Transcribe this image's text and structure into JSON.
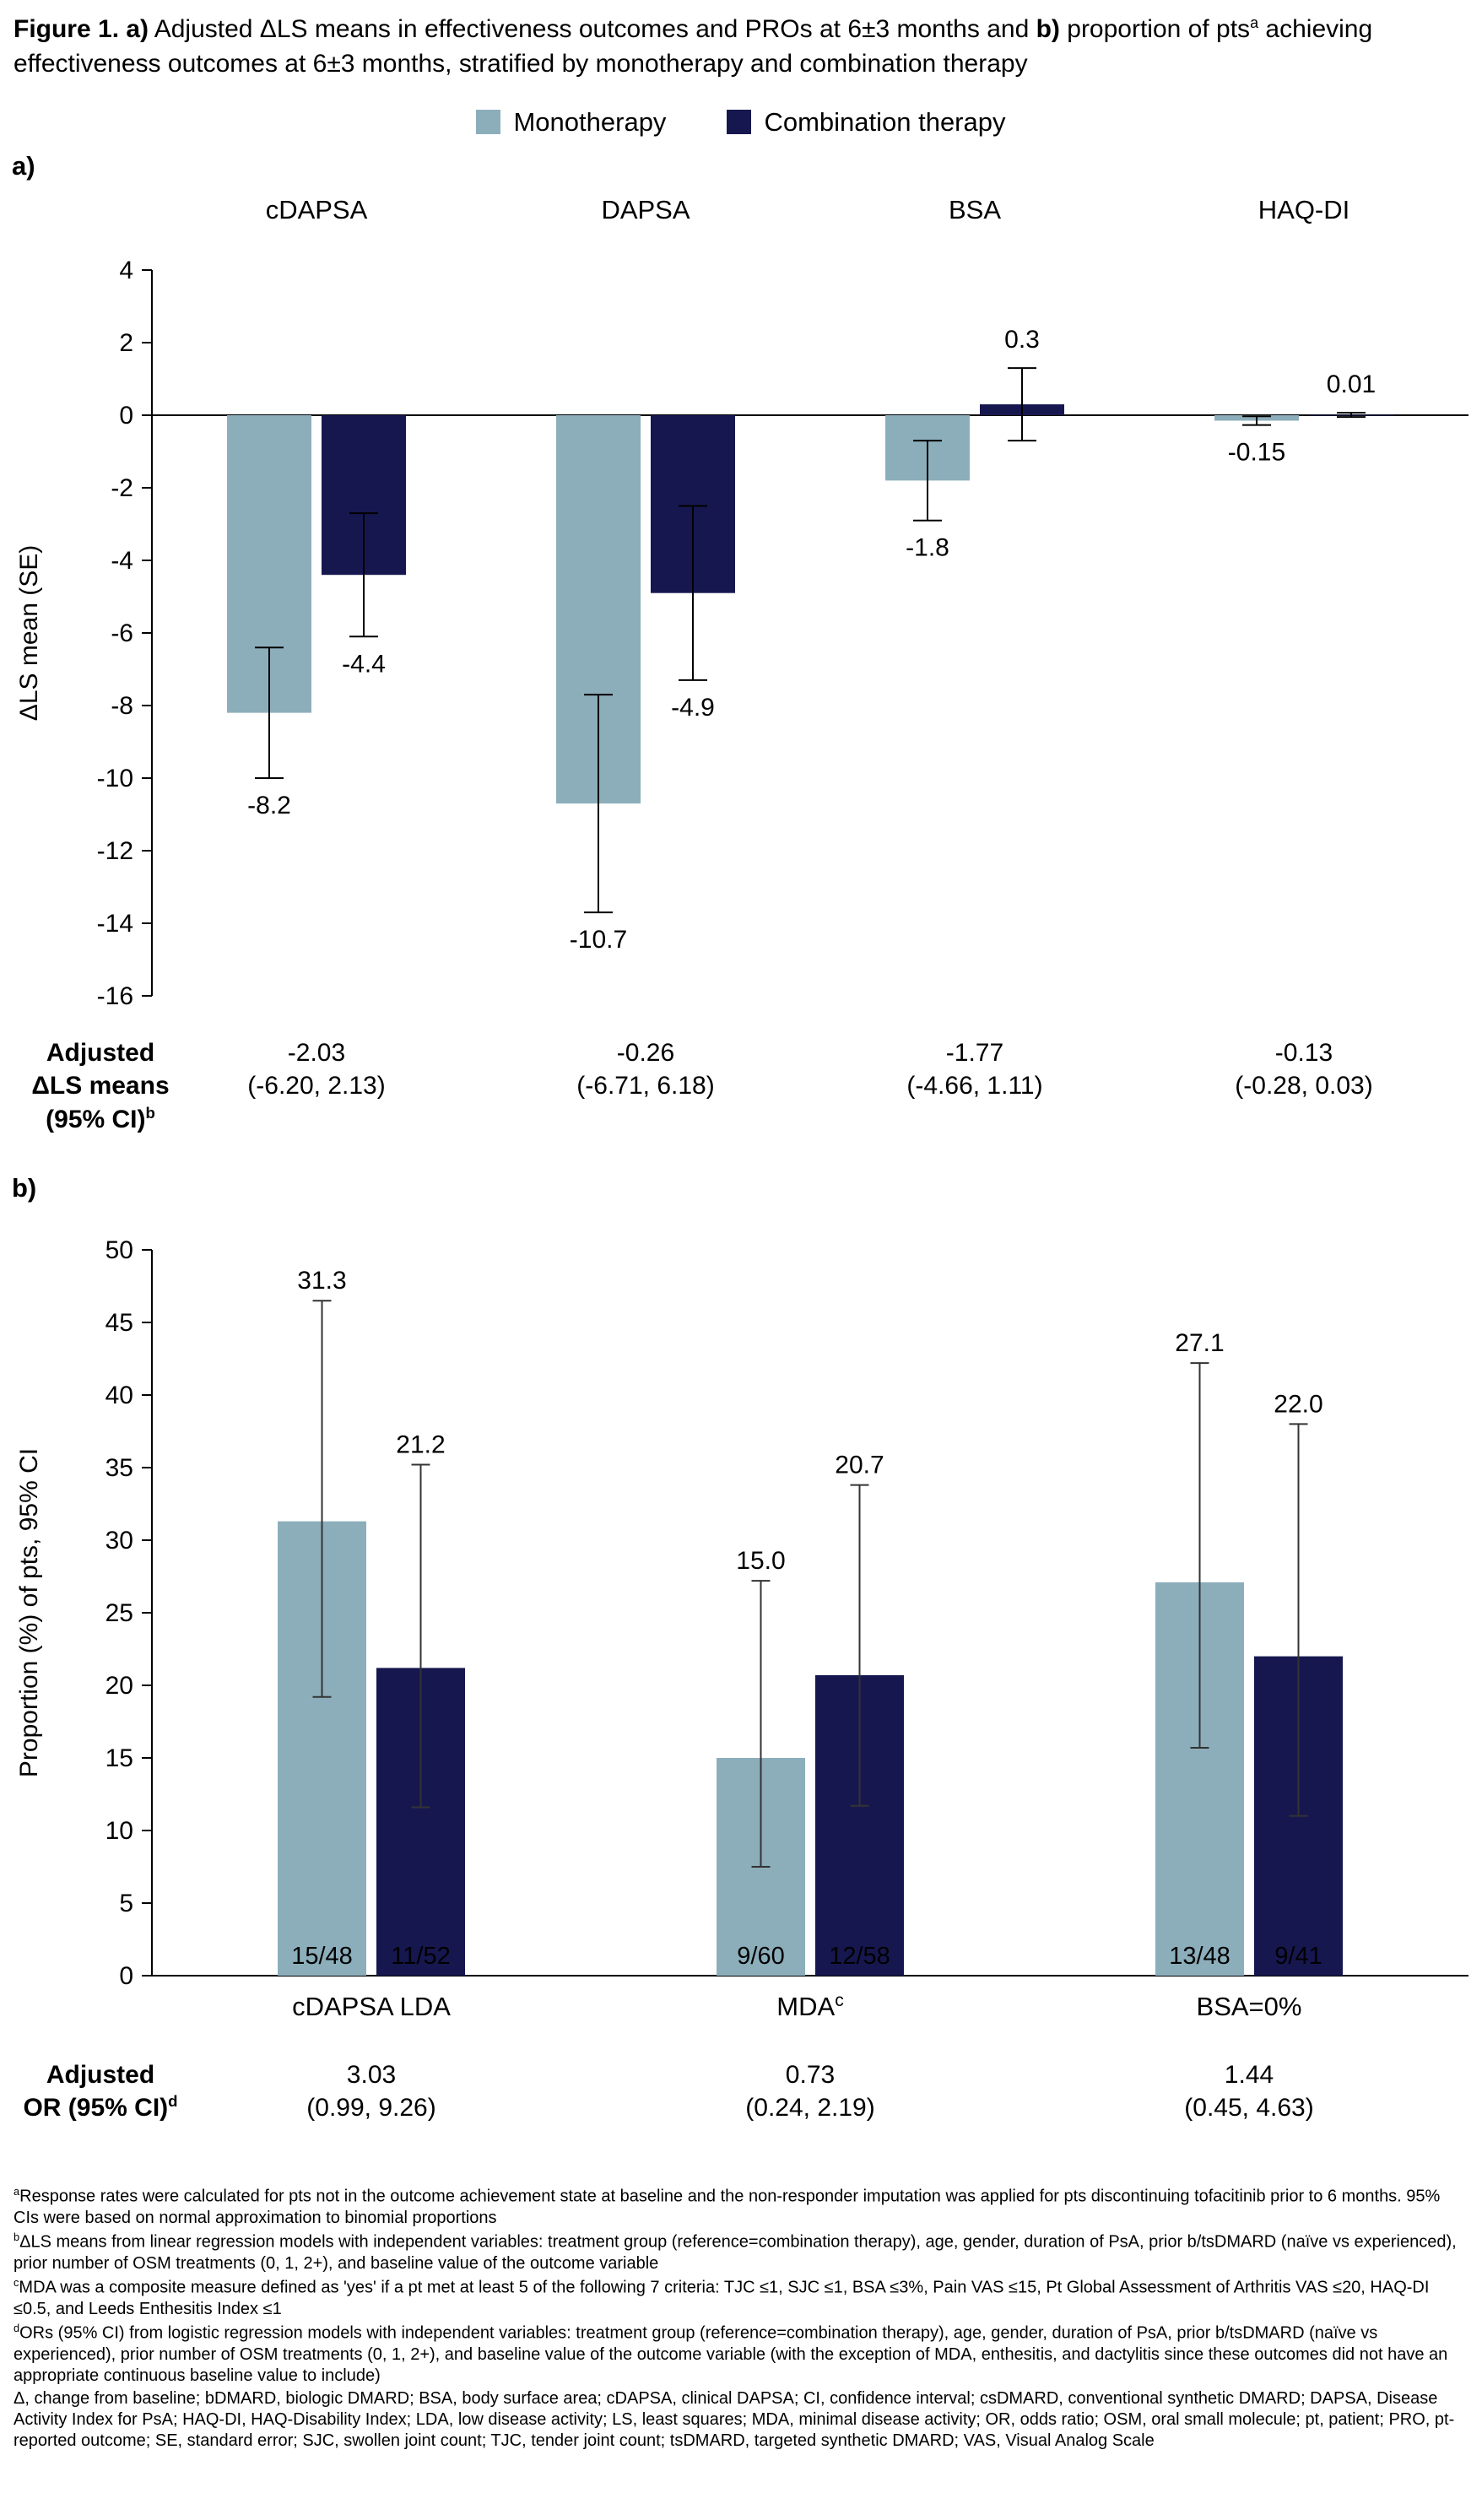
{
  "title": {
    "bold1": "Figure 1. a)",
    "text1": " Adjusted ΔLS means in effectiveness outcomes and PROs at 6±3 months and ",
    "bold2": "b)",
    "text2": " proportion of pts",
    "sup": "a",
    "text3": " achieving effectiveness outcomes at 6±3 months, stratified by monotherapy and combination therapy"
  },
  "legend": {
    "items": [
      {
        "label": "Monotherapy",
        "color": "#8CAEBB"
      },
      {
        "label": "Combination therapy",
        "color": "#17174F"
      }
    ]
  },
  "chart_data": [
    {
      "id": "panel_a",
      "type": "bar",
      "panel_label": "a)",
      "title": "Adjusted ΔLS means in effectiveness outcomes and PROs at 6±3 months",
      "ylabel": "ΔLS mean (SE)",
      "ylim": [
        -16,
        4
      ],
      "yticks": [
        4,
        2,
        0,
        -2,
        -4,
        -6,
        -8,
        -10,
        -12,
        -14,
        -16
      ],
      "grid": false,
      "legend_position": "top",
      "categories": [
        "cDAPSA",
        "DAPSA",
        "BSA",
        "HAQ-DI"
      ],
      "category_sups": [
        "",
        "",
        "",
        ""
      ],
      "series": [
        {
          "name": "Monotherapy",
          "values": [
            -8.2,
            -10.7,
            -1.8,
            -0.15
          ],
          "se": [
            1.8,
            3.0,
            1.1,
            0.12
          ]
        },
        {
          "name": "Combination therapy",
          "values": [
            -4.4,
            -4.9,
            0.3,
            0.01
          ],
          "se": [
            1.7,
            2.4,
            1.0,
            0.06
          ]
        }
      ],
      "value_labels": [
        [
          "-8.2",
          "-10.7",
          "-1.8",
          "-0.15"
        ],
        [
          "-4.4",
          "-4.9",
          "0.3",
          "0.01"
        ]
      ],
      "stats_row": {
        "label_lines": [
          "Adjusted",
          "ΔLS means",
          "(95% CI)"
        ],
        "label_sup": "b",
        "cells": [
          [
            "-2.03",
            "(-6.20, 2.13)"
          ],
          [
            "-0.26",
            "(-6.71, 6.18)"
          ],
          [
            "-1.77",
            "(-4.66, 1.11)"
          ],
          [
            "-0.13",
            "(-0.28, 0.03)"
          ]
        ]
      }
    },
    {
      "id": "panel_b",
      "type": "bar",
      "panel_label": "b)",
      "title": "Proportion of pts achieving effectiveness outcomes at 6±3 months",
      "ylabel": "Proportion (%) of pts, 95% CI",
      "ylim": [
        0,
        50
      ],
      "yticks": [
        50,
        45,
        40,
        35,
        30,
        25,
        20,
        15,
        10,
        5,
        0
      ],
      "grid": false,
      "categories": [
        "cDAPSA LDA",
        "MDA",
        "BSA=0%"
      ],
      "category_sups": [
        "",
        "c",
        ""
      ],
      "series": [
        {
          "name": "Monotherapy",
          "values": [
            31.3,
            15.0,
            27.1
          ],
          "ci_low": [
            19.2,
            7.5,
            15.7
          ],
          "ci_high": [
            46.5,
            27.2,
            42.2
          ],
          "fractions": [
            "15/48",
            "9/60",
            "13/48"
          ]
        },
        {
          "name": "Combination therapy",
          "values": [
            21.2,
            20.7,
            22.0
          ],
          "ci_low": [
            11.6,
            11.7,
            11.0
          ],
          "ci_high": [
            35.2,
            33.8,
            38.0
          ],
          "fractions": [
            "11/52",
            "12/58",
            "9/41"
          ]
        }
      ],
      "value_labels": [
        [
          "31.3",
          "15.0",
          "27.1"
        ],
        [
          "21.2",
          "20.7",
          "22.0"
        ]
      ],
      "stats_row": {
        "label_lines": [
          "Adjusted",
          "OR (95% CI)"
        ],
        "label_sup": "d",
        "cells": [
          [
            "3.03",
            "(0.99, 9.26)"
          ],
          [
            "0.73",
            "(0.24, 2.19)"
          ],
          [
            "1.44",
            "(0.45, 4.63)"
          ]
        ]
      }
    }
  ],
  "footnotes": [
    {
      "sup": "a",
      "text": "Response rates were calculated for pts not in the outcome achievement state at baseline and the non-responder imputation was applied for pts discontinuing tofacitinib prior to 6 months. 95% CIs were based on normal approximation to binomial proportions"
    },
    {
      "sup": "b",
      "text": "ΔLS means from linear regression models with independent variables: treatment group (reference=combination therapy), age, gender, duration of PsA, prior b/tsDMARD (naïve vs experienced), prior number of OSM treatments (0, 1, 2+), and baseline value of the outcome variable"
    },
    {
      "sup": "c",
      "text": "MDA was a composite measure defined as 'yes' if a pt met at least 5 of the following 7 criteria: TJC ≤1, SJC ≤1, BSA ≤3%, Pain VAS ≤15, Pt Global Assessment of Arthritis VAS ≤20, HAQ-DI ≤0.5, and Leeds Enthesitis Index ≤1"
    },
    {
      "sup": "d",
      "text": "ORs (95% CI) from logistic regression models with independent variables: treatment group (reference=combination therapy), age, gender, duration of PsA, prior b/tsDMARD (naïve vs experienced), prior number of OSM treatments (0, 1, 2+), and baseline value of the outcome variable (with the exception of MDA, enthesitis, and dactylitis since these outcomes did not have an appropriate continuous baseline value to include)"
    },
    {
      "sup": "",
      "text": "Δ, change from baseline; bDMARD, biologic DMARD; BSA, body surface area; cDAPSA, clinical DAPSA; CI, confidence interval; csDMARD, conventional synthetic DMARD; DAPSA, Disease Activity Index for PsA; HAQ-DI, HAQ-Disability Index; LDA, low disease activity; LS, least squares; MDA, minimal disease activity; OR, odds ratio; OSM, oral small molecule; pt, patient; PRO, pt-reported outcome; SE, standard error; SJC, swollen joint count; TJC, tender joint count; tsDMARD, targeted synthetic DMARD; VAS, Visual Analog Scale"
    }
  ]
}
